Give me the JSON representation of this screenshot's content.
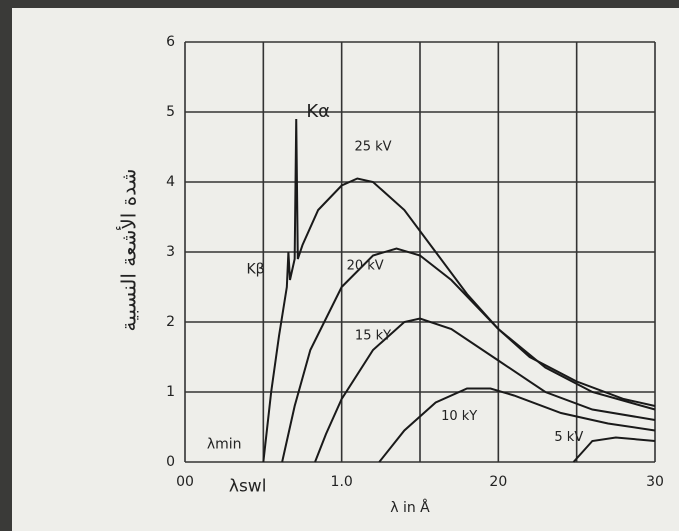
{
  "chart_data": {
    "type": "line",
    "ylabel": "شدة الأشعة النسبية",
    "xlabel": "λ in Å",
    "xlim": [
      0,
      3.0
    ],
    "ylim": [
      0,
      6
    ],
    "xticks": [
      {
        "value": 0,
        "label": "00"
      },
      {
        "value": 1.0,
        "label": "1.0"
      },
      {
        "value": 2.0,
        "label": "20"
      },
      {
        "value": 3.0,
        "label": "30"
      }
    ],
    "xminor": [
      0.5,
      1.5,
      2.5
    ],
    "yticks": [
      0,
      1,
      2,
      3,
      4,
      5,
      6
    ],
    "grid": true,
    "annotations": [
      "Kα",
      "Kβ",
      "λmin",
      "λswl"
    ],
    "series": [
      {
        "name": "25 kV",
        "color": "#1a1a1a",
        "x": [
          0.5,
          0.55,
          0.6,
          0.65,
          0.66,
          0.67,
          0.7,
          0.71,
          0.72,
          0.75,
          0.85,
          1.0,
          1.1,
          1.2,
          1.4,
          1.6,
          1.8,
          2.0,
          2.2,
          2.5,
          2.8,
          3.0
        ],
        "values": [
          0,
          1.0,
          1.8,
          2.5,
          3.0,
          2.6,
          2.9,
          4.9,
          2.9,
          3.1,
          3.6,
          3.95,
          4.05,
          4.0,
          3.6,
          3.0,
          2.4,
          1.9,
          1.5,
          1.15,
          0.9,
          0.8
        ]
      },
      {
        "name": "20 kV",
        "color": "#1a1a1a",
        "x": [
          0.62,
          0.7,
          0.8,
          1.0,
          1.2,
          1.35,
          1.5,
          1.7,
          2.0,
          2.3,
          2.6,
          3.0
        ],
        "values": [
          0,
          0.8,
          1.6,
          2.5,
          2.95,
          3.05,
          2.95,
          2.6,
          1.9,
          1.35,
          1.0,
          0.75
        ]
      },
      {
        "name": "15 kY",
        "color": "#1a1a1a",
        "x": [
          0.83,
          0.9,
          1.0,
          1.2,
          1.4,
          1.5,
          1.7,
          2.0,
          2.3,
          2.6,
          3.0
        ],
        "values": [
          0,
          0.4,
          0.9,
          1.6,
          2.0,
          2.05,
          1.9,
          1.45,
          1.0,
          0.75,
          0.6
        ]
      },
      {
        "name": "10 kY",
        "color": "#1a1a1a",
        "x": [
          1.24,
          1.4,
          1.6,
          1.8,
          1.95,
          2.1,
          2.4,
          2.7,
          3.0
        ],
        "values": [
          0,
          0.45,
          0.85,
          1.05,
          1.05,
          0.95,
          0.7,
          0.55,
          0.45
        ]
      },
      {
        "name": "5 kV",
        "color": "#1a1a1a",
        "x": [
          2.48,
          2.6,
          2.75,
          2.9,
          3.0
        ],
        "values": [
          0,
          0.3,
          0.35,
          0.32,
          0.3
        ]
      }
    ]
  }
}
